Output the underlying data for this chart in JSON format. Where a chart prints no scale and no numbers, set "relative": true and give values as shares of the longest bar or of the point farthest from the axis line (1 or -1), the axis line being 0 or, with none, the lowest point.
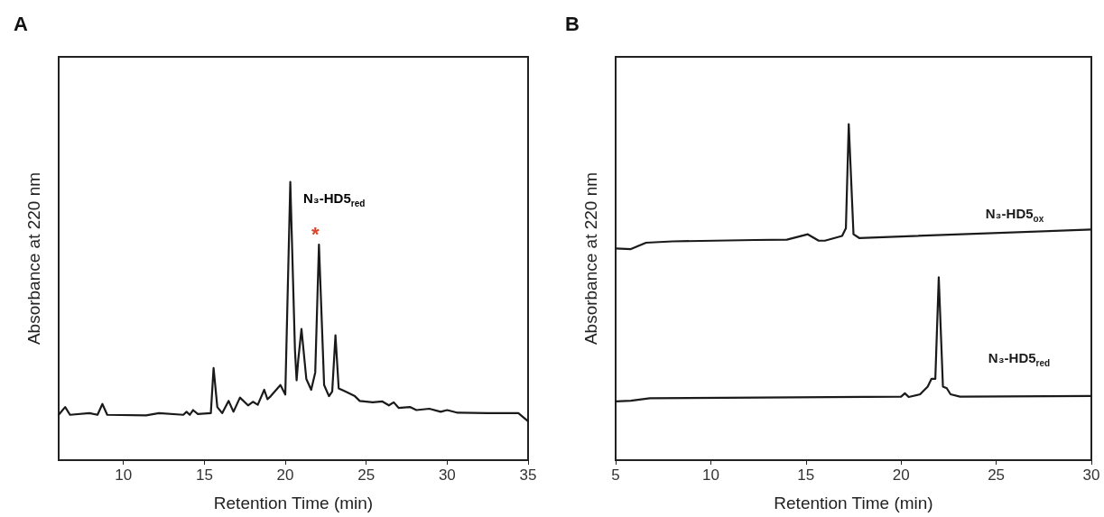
{
  "chart_data": [
    {
      "type": "line",
      "title": "A",
      "xlabel": "Retention Time (min)",
      "ylabel": "Absorbance at 220 nm",
      "relative": true,
      "xlim": [
        6,
        35
      ],
      "xticks": [
        10,
        15,
        20,
        25,
        30,
        35
      ],
      "grid": false,
      "line_style": "solid",
      "annotations": [
        "N₃-HD5$_{red}$",
        "*"
      ],
      "series": [
        {
          "color": "#1a1a1a",
          "x": [
            6.0,
            6.4,
            6.7,
            7.9,
            8.4,
            8.7,
            9.0,
            11.4,
            12.2,
            13.7,
            13.9,
            14.1,
            14.3,
            14.6,
            15.4,
            15.57,
            15.8,
            16.1,
            16.5,
            16.8,
            17.2,
            17.7,
            18.0,
            18.3,
            18.7,
            18.9,
            19.1,
            19.7,
            20.0,
            20.31,
            20.6,
            20.7,
            20.8,
            21.0,
            21.3,
            21.6,
            21.85,
            22.08,
            22.4,
            22.7,
            22.9,
            23.1,
            23.3,
            23.7,
            24.3,
            24.6,
            25.4,
            26.0,
            26.4,
            26.7,
            27.0,
            27.7,
            28.1,
            28.9,
            29.6,
            30.0,
            30.6,
            32.5,
            34.4,
            35.0
          ],
          "values": [
            0.163,
            0.191,
            0.163,
            0.169,
            0.163,
            0.202,
            0.163,
            0.161,
            0.169,
            0.163,
            0.174,
            0.163,
            0.18,
            0.166,
            0.169,
            0.331,
            0.191,
            0.169,
            0.213,
            0.174,
            0.225,
            0.197,
            0.21,
            0.199,
            0.253,
            0.219,
            0.23,
            0.27,
            0.236,
            1.0,
            0.393,
            0.287,
            0.36,
            0.472,
            0.292,
            0.253,
            0.315,
            0.775,
            0.27,
            0.23,
            0.247,
            0.449,
            0.258,
            0.247,
            0.23,
            0.213,
            0.208,
            0.211,
            0.197,
            0.208,
            0.188,
            0.191,
            0.18,
            0.185,
            0.174,
            0.18,
            0.171,
            0.169,
            0.169,
            0.14
          ]
        }
      ]
    },
    {
      "type": "line",
      "title": "B",
      "xlabel": "Retention Time (min)",
      "ylabel": "Absorbance at 220 nm",
      "relative": true,
      "xlim": [
        5,
        30
      ],
      "xticks": [
        5,
        10,
        15,
        20,
        25,
        30
      ],
      "grid": false,
      "line_style": "solid",
      "series": [
        {
          "name": "N₃-HD5$_{ox}$",
          "color": "#1a1a1a",
          "x": [
            5.0,
            5.8,
            6.6,
            8.0,
            12.3,
            14.0,
            15.1,
            15.67,
            16.0,
            16.9,
            17.1,
            17.25,
            17.5,
            17.8,
            30.0
          ],
          "values": [
            0.63,
            0.628,
            0.647,
            0.651,
            0.655,
            0.656,
            0.672,
            0.653,
            0.653,
            0.667,
            0.69,
            1.0,
            0.672,
            0.661,
            0.686
          ]
        },
        {
          "name": "N₃-HD5$_{red}$",
          "color": "#1a1a1a",
          "x": [
            5.0,
            5.8,
            6.8,
            20.0,
            20.2,
            20.4,
            21.0,
            21.4,
            21.6,
            21.8,
            21.98,
            22.2,
            22.4,
            22.6,
            23.1,
            30.0
          ],
          "values": [
            0.175,
            0.177,
            0.184,
            0.189,
            0.199,
            0.188,
            0.196,
            0.219,
            0.242,
            0.242,
            0.544,
            0.219,
            0.214,
            0.196,
            0.189,
            0.191
          ]
        }
      ]
    }
  ]
}
